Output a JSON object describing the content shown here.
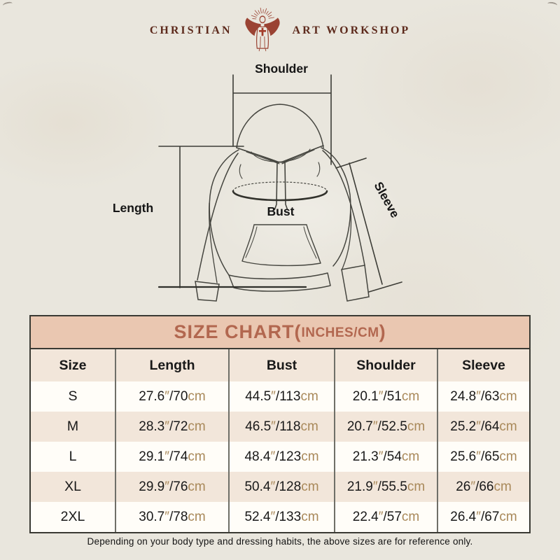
{
  "brand": {
    "name_left": "CHRISTIAN",
    "name_right": "ART WORKSHOP",
    "icon": "jesus-rays-cross-icon",
    "text_color": "#5d2a1c",
    "icon_color": "#9a4333"
  },
  "diagram": {
    "labels": {
      "shoulder": "Shoulder",
      "length": "Length",
      "bust": "Bust",
      "sleeve": "Sleeve"
    },
    "line_color": "#45453f"
  },
  "size_chart": {
    "title_main": "SIZE CHART(",
    "title_units": "INCHES/CM",
    "title_close": ")",
    "title_color": "#b2674f",
    "title_bg": "#eac7b1",
    "header_row_bg": "#f2e6da",
    "columns": [
      "Size",
      "Length",
      "Bust",
      "Shoulder",
      "Sleeve"
    ],
    "measure_keys": [
      "length",
      "bust",
      "shoulder",
      "sleeve"
    ],
    "unit_inch_mark": "″",
    "unit_cm_label": "cm",
    "unit_color": "#a9895a",
    "rows": [
      {
        "size": "S",
        "length": {
          "in": "27.6",
          "cm": "70"
        },
        "bust": {
          "in": "44.5",
          "cm": "113"
        },
        "shoulder": {
          "in": "20.1",
          "cm": "51"
        },
        "sleeve": {
          "in": "24.8",
          "cm": "63"
        }
      },
      {
        "size": "M",
        "length": {
          "in": "28.3",
          "cm": "72"
        },
        "bust": {
          "in": "46.5",
          "cm": "118"
        },
        "shoulder": {
          "in": "20.7",
          "cm": "52.5"
        },
        "sleeve": {
          "in": "25.2",
          "cm": "64"
        }
      },
      {
        "size": "L",
        "length": {
          "in": "29.1",
          "cm": "74"
        },
        "bust": {
          "in": "48.4",
          "cm": "123"
        },
        "shoulder": {
          "in": "21.3",
          "cm": "54"
        },
        "sleeve": {
          "in": "25.6",
          "cm": "65"
        }
      },
      {
        "size": "XL",
        "length": {
          "in": "29.9",
          "cm": "76"
        },
        "bust": {
          "in": "50.4",
          "cm": "128"
        },
        "shoulder": {
          "in": "21.9",
          "cm": "55.5"
        },
        "sleeve": {
          "in": "26",
          "cm": "66"
        }
      },
      {
        "size": "2XL",
        "length": {
          "in": "30.7",
          "cm": "78"
        },
        "bust": {
          "in": "52.4",
          "cm": "133"
        },
        "shoulder": {
          "in": "22.4",
          "cm": "57"
        },
        "sleeve": {
          "in": "26.4",
          "cm": "67"
        }
      }
    ]
  },
  "footer": {
    "note": "Depending on your body type and dressing habits, the above sizes are for reference only."
  }
}
